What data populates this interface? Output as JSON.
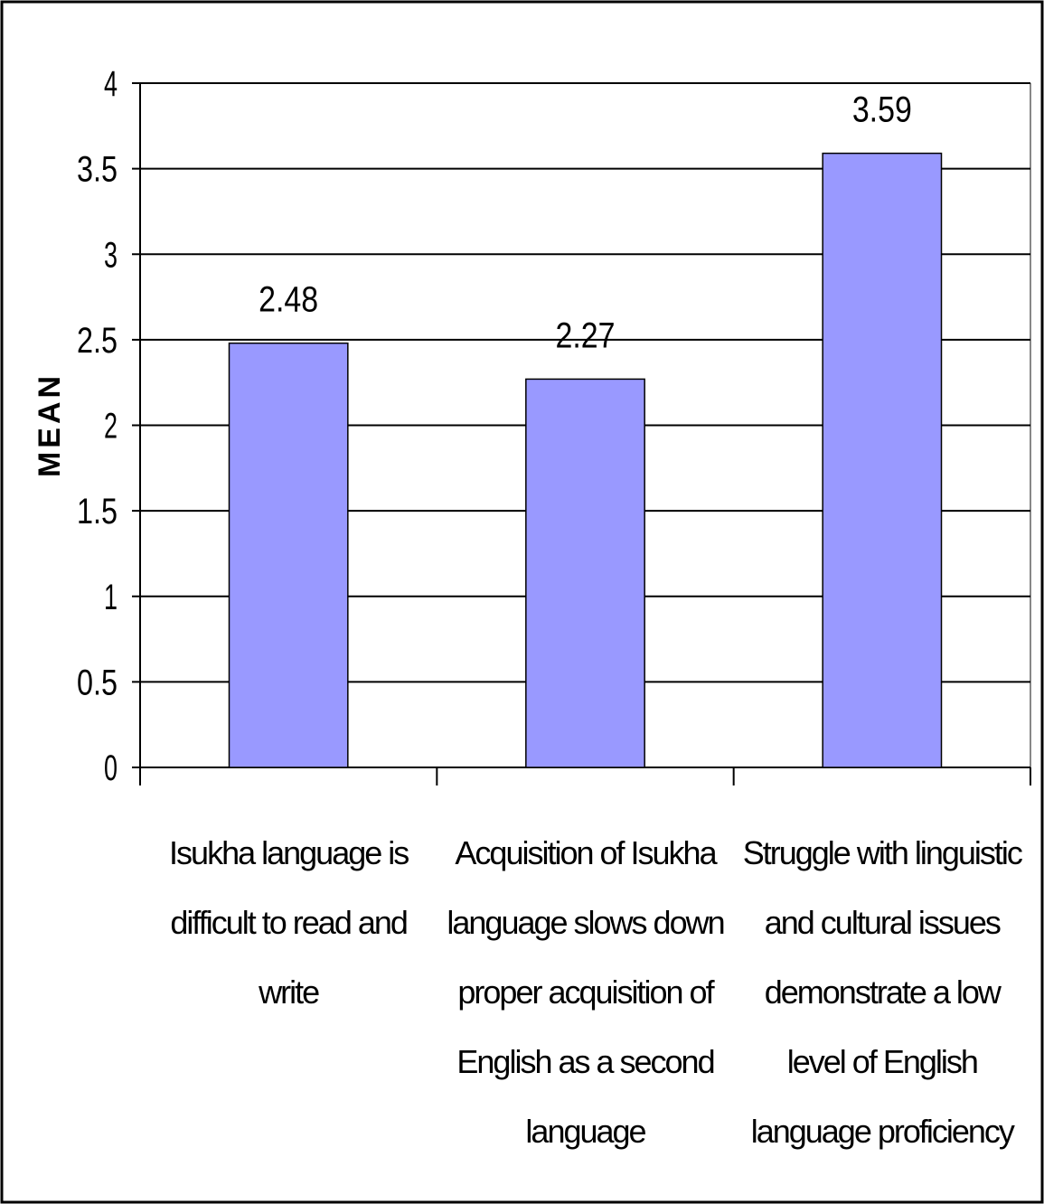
{
  "chart_data": {
    "type": "bar",
    "y_label": "MEAN",
    "categories": [
      "Isukha language is difficult to read and write",
      "Acquisition of Isukha language slows down proper acquisition of English as a second language",
      "Struggle with linguistic and cultural issues demonstrate a low level of English language proficiency"
    ],
    "values": [
      2.48,
      2.27,
      3.59
    ],
    "color": "#9999ff",
    "ylim": [
      0,
      4
    ],
    "yticks": [
      0,
      0.5,
      1,
      1.5,
      2,
      2.5,
      3,
      3.5,
      4
    ],
    "grid": true
  }
}
